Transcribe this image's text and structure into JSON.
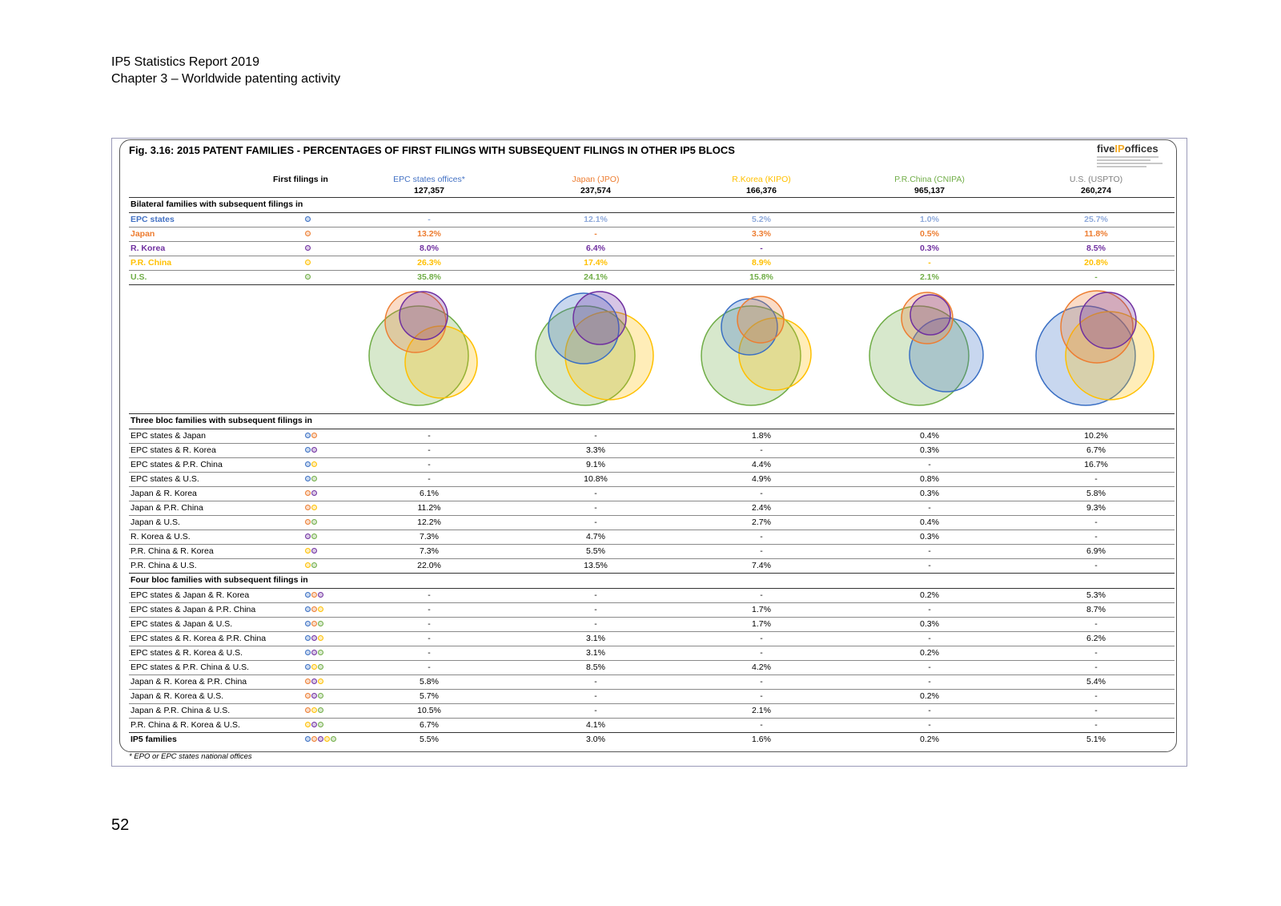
{
  "page": {
    "header_line1": "IP5 Statistics Report 2019",
    "header_line2": "Chapter 3 – Worldwide patenting activity",
    "page_number": "52"
  },
  "figure": {
    "title": "Fig. 3.16: 2015 PATENT FAMILIES - PERCENTAGES OF FIRST FILINGS WITH SUBSEQUENT FILINGS IN OTHER IP5 BLOCS",
    "logo_text_pre": "five",
    "logo_text_ip": "IP",
    "logo_text_post": "offices",
    "footnote": "* EPO or EPC states national offices",
    "first_filings_label": "First filings in",
    "colors": {
      "epc": "#3a6fc4",
      "japan": "#ed7d31",
      "korea": "#7030a0",
      "china": "#ffc000",
      "us": "#70ad47",
      "epc_header": "#4472c4",
      "epc_light": "#8ea9db",
      "us_header": "#7f7f7f"
    },
    "columns": [
      {
        "name": "EPC states offices*",
        "count": "127,357"
      },
      {
        "name": "Japan (JPO)",
        "count": "237,574"
      },
      {
        "name": "R.Korea (KIPO)",
        "count": "166,376"
      },
      {
        "name": "P.R.China (CNIPA)",
        "count": "965,137"
      },
      {
        "name": "U.S. (USPTO)",
        "count": "260,274"
      }
    ],
    "sections": {
      "bilateral": "Bilateral families with subsequent filings in",
      "three_bloc": "Three bloc families with subsequent filings in",
      "four_bloc": "Four bloc families with subsequent filings in"
    },
    "bilateral_rows": [
      {
        "label": "EPC states",
        "dots": [
          "epc"
        ],
        "values": [
          "-",
          "12.1%",
          "5.2%",
          "1.0%",
          "25.7%"
        ]
      },
      {
        "label": "Japan",
        "dots": [
          "japan"
        ],
        "values": [
          "13.2%",
          "-",
          "3.3%",
          "0.5%",
          "11.8%"
        ]
      },
      {
        "label": "R. Korea",
        "dots": [
          "korea"
        ],
        "values": [
          "8.0%",
          "6.4%",
          "-",
          "0.3%",
          "8.5%"
        ]
      },
      {
        "label": "P.R. China",
        "dots": [
          "china"
        ],
        "values": [
          "26.3%",
          "17.4%",
          "8.9%",
          "-",
          "20.8%"
        ]
      },
      {
        "label": "U.S.",
        "dots": [
          "us"
        ],
        "values": [
          "35.8%",
          "24.1%",
          "15.8%",
          "2.1%",
          "-"
        ]
      }
    ],
    "three_bloc_rows": [
      {
        "label": "EPC states  &  Japan",
        "dots": [
          "epc",
          "japan"
        ],
        "values": [
          "-",
          "-",
          "1.8%",
          "0.4%",
          "10.2%"
        ]
      },
      {
        "label": "EPC states  &  R. Korea",
        "dots": [
          "epc",
          "korea"
        ],
        "values": [
          "-",
          "3.3%",
          "-",
          "0.3%",
          "6.7%"
        ]
      },
      {
        "label": "EPC states  &  P.R. China",
        "dots": [
          "epc",
          "china"
        ],
        "values": [
          "-",
          "9.1%",
          "4.4%",
          "-",
          "16.7%"
        ]
      },
      {
        "label": "EPC states  &  U.S.",
        "dots": [
          "epc",
          "us"
        ],
        "values": [
          "-",
          "10.8%",
          "4.9%",
          "0.8%",
          "-"
        ]
      },
      {
        "label": "Japan  &  R. Korea",
        "dots": [
          "japan",
          "korea"
        ],
        "values": [
          "6.1%",
          "-",
          "-",
          "0.3%",
          "5.8%"
        ]
      },
      {
        "label": "Japan  &  P.R. China",
        "dots": [
          "japan",
          "china"
        ],
        "values": [
          "11.2%",
          "-",
          "2.4%",
          "-",
          "9.3%"
        ]
      },
      {
        "label": "Japan  &  U.S.",
        "dots": [
          "japan",
          "us"
        ],
        "values": [
          "12.2%",
          "-",
          "2.7%",
          "0.4%",
          "-"
        ]
      },
      {
        "label": "R. Korea  &  U.S.",
        "dots": [
          "korea",
          "us"
        ],
        "values": [
          "7.3%",
          "4.7%",
          "-",
          "0.3%",
          "-"
        ]
      },
      {
        "label": "P.R. China  &  R. Korea",
        "dots": [
          "china",
          "korea"
        ],
        "values": [
          "7.3%",
          "5.5%",
          "-",
          "-",
          "6.9%"
        ]
      },
      {
        "label": "P.R. China  &  U.S.",
        "dots": [
          "china",
          "us"
        ],
        "values": [
          "22.0%",
          "13.5%",
          "7.4%",
          "-",
          "-"
        ]
      }
    ],
    "four_bloc_rows": [
      {
        "label": "EPC states  &  Japan  &  R. Korea",
        "dots": [
          "epc",
          "japan",
          "korea"
        ],
        "values": [
          "-",
          "-",
          "-",
          "0.2%",
          "5.3%"
        ]
      },
      {
        "label": "EPC states  &  Japan  &  P.R. China",
        "dots": [
          "epc",
          "japan",
          "china"
        ],
        "values": [
          "-",
          "-",
          "1.7%",
          "-",
          "8.7%"
        ]
      },
      {
        "label": "EPC states  &  Japan  &  U.S.",
        "dots": [
          "epc",
          "japan",
          "us"
        ],
        "values": [
          "-",
          "-",
          "1.7%",
          "0.3%",
          "-"
        ]
      },
      {
        "label": "EPC states  &  R. Korea  &  P.R. China",
        "dots": [
          "epc",
          "korea",
          "china"
        ],
        "values": [
          "-",
          "3.1%",
          "-",
          "-",
          "6.2%"
        ]
      },
      {
        "label": "EPC states  &  R. Korea  &  U.S.",
        "dots": [
          "epc",
          "korea",
          "us"
        ],
        "values": [
          "-",
          "3.1%",
          "-",
          "0.2%",
          "-"
        ]
      },
      {
        "label": "EPC states  &  P.R. China  &  U.S.",
        "dots": [
          "epc",
          "china",
          "us"
        ],
        "values": [
          "-",
          "8.5%",
          "4.2%",
          "-",
          "-"
        ]
      },
      {
        "label": "Japan  &  R. Korea  &  P.R. China",
        "dots": [
          "japan",
          "korea",
          "china"
        ],
        "values": [
          "5.8%",
          "-",
          "-",
          "-",
          "5.4%"
        ]
      },
      {
        "label": "Japan  &  R. Korea  &  U.S.",
        "dots": [
          "japan",
          "korea",
          "us"
        ],
        "values": [
          "5.7%",
          "-",
          "-",
          "0.2%",
          "-"
        ]
      },
      {
        "label": "Japan  &  P.R. China  &  U.S.",
        "dots": [
          "japan",
          "china",
          "us"
        ],
        "values": [
          "10.5%",
          "-",
          "2.1%",
          "-",
          "-"
        ]
      },
      {
        "label": "P.R. China  & R. Korea  &  U.S.",
        "dots": [
          "china",
          "korea",
          "us"
        ],
        "values": [
          "6.7%",
          "4.1%",
          "-",
          "-",
          "-"
        ]
      }
    ],
    "ip5_row": {
      "label": "IP5 families",
      "dots": [
        "epc",
        "japan",
        "korea",
        "china",
        "us"
      ],
      "values": [
        "5.5%",
        "3.0%",
        "1.6%",
        "0.2%",
        "5.1%"
      ]
    }
  }
}
